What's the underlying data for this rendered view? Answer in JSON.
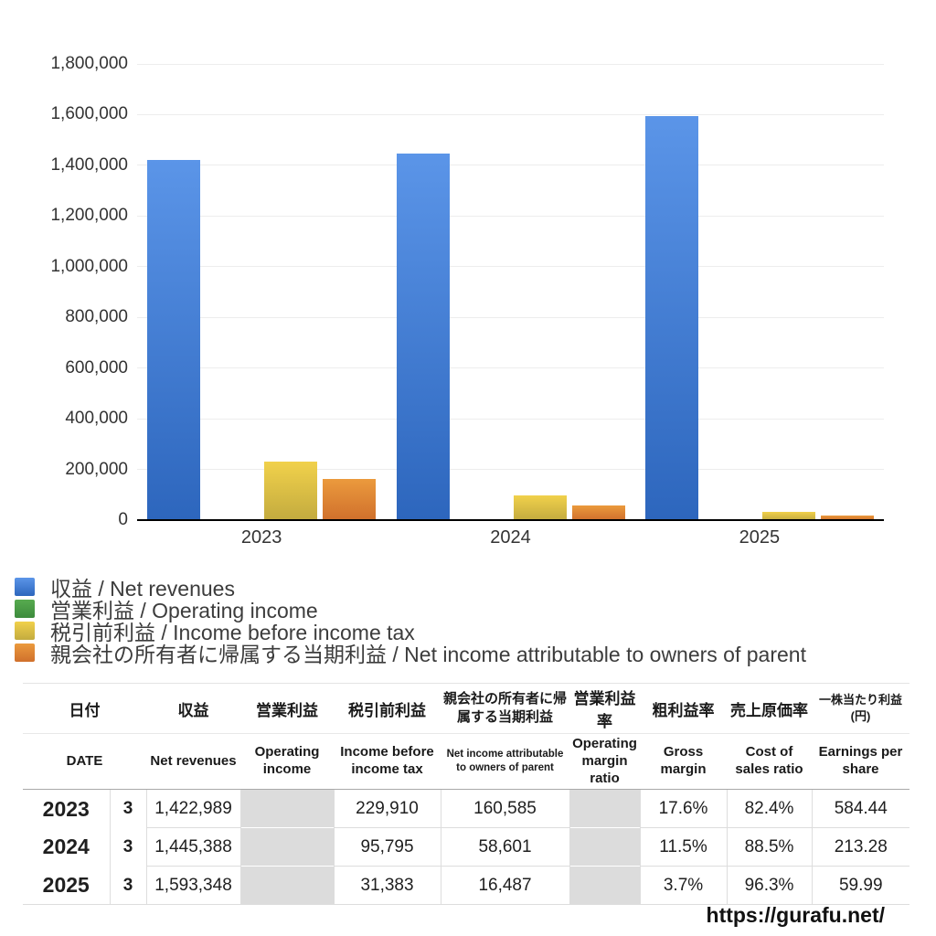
{
  "chart_data": {
    "type": "bar",
    "title": "",
    "categories": [
      "2023",
      "2024",
      "2025"
    ],
    "series": [
      {
        "key": "net-revenues",
        "name": "収益 / Net revenues",
        "color_top": "#5b95e8",
        "color_bottom": "#2d66bd",
        "values": [
          1422989,
          1445388,
          1593348
        ]
      },
      {
        "key": "operating-income",
        "name": "営業利益 / Operating income",
        "color_top": "#57ab4f",
        "color_bottom": "#3d8b3d",
        "values": [
          null,
          null,
          null
        ]
      },
      {
        "key": "income-before-income-tax",
        "name": "税引前利益 / Income before income tax",
        "color_top": "#f1d14b",
        "color_bottom": "#c3ab3f",
        "values": [
          229910,
          95795,
          31383
        ]
      },
      {
        "key": "net-income-owners-of-parent",
        "name": "親会社の所有者に帰属する当期利益 / Net income attributable to owners of parent",
        "color_top": "#eb9a3d",
        "color_bottom": "#d0702c",
        "values": [
          160585,
          58601,
          16487
        ]
      }
    ],
    "ylim": [
      0,
      1800000
    ],
    "ytick_step": 200000,
    "grid": true,
    "legend_position": "bottom-left"
  },
  "table": {
    "columns": [
      {
        "jp": "日付",
        "en": "DATE"
      },
      {
        "jp": "収益",
        "en": "Net revenues"
      },
      {
        "jp": "営業利益",
        "en": "Operating income"
      },
      {
        "jp": "税引前利益",
        "en": "Income before income tax"
      },
      {
        "jp": "親会社の所有者に帰属する当期利益",
        "en": "Net income attributable to owners of parent"
      },
      {
        "jp": "営業利益率",
        "en": "Operating margin ratio"
      },
      {
        "jp": "粗利益率",
        "en": "Gross margin"
      },
      {
        "jp": "売上原価率",
        "en": "Cost of sales ratio"
      },
      {
        "jp": "一株当たり利益(円)",
        "en": "Earnings per share"
      }
    ],
    "rows": [
      {
        "year": "2023",
        "month": "3",
        "net_revenues": "1,422,989",
        "operating_income": "",
        "income_before_tax": "229,910",
        "net_income": "160,585",
        "operating_margin": "",
        "gross_margin": "17.6%",
        "cost_of_sales": "82.4%",
        "eps": "584.44"
      },
      {
        "year": "2024",
        "month": "3",
        "net_revenues": "1,445,388",
        "operating_income": "",
        "income_before_tax": "95,795",
        "net_income": "58,601",
        "operating_margin": "",
        "gross_margin": "11.5%",
        "cost_of_sales": "88.5%",
        "eps": "213.28"
      },
      {
        "year": "2025",
        "month": "3",
        "net_revenues": "1,593,348",
        "operating_income": "",
        "income_before_tax": "31,383",
        "net_income": "16,487",
        "operating_margin": "",
        "gross_margin": "3.7%",
        "cost_of_sales": "96.3%",
        "eps": "59.99"
      }
    ]
  },
  "footer": {
    "url": "https://gurafu.net/"
  }
}
